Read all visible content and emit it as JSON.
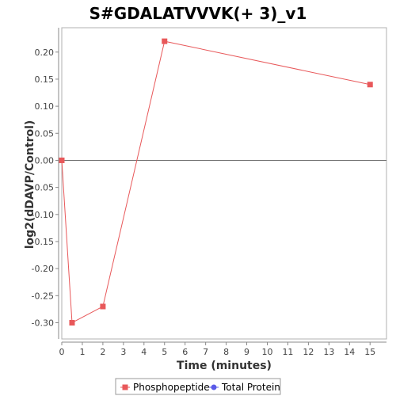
{
  "chart_data": {
    "type": "line",
    "title": "S#GDALATVVVK(+ 3)_v1",
    "xlabel": "Time (minutes)",
    "ylabel": "log2(dDAVP/Control)",
    "xlim": [
      0,
      15.8
    ],
    "ylim": [
      -0.33,
      0.245
    ],
    "x_ticks": [
      0,
      1,
      2,
      3,
      4,
      5,
      6,
      7,
      8,
      9,
      10,
      11,
      12,
      13,
      14,
      15
    ],
    "x_tick_labels": [
      "0",
      "1",
      "2",
      "3",
      "4",
      "5",
      "6",
      "7",
      "8",
      "9",
      "10",
      "11",
      "12",
      "13",
      "14",
      "15"
    ],
    "y_ticks": [
      0.2,
      0.15,
      0.1,
      0.05,
      0.0,
      -0.05,
      -0.1,
      -0.15,
      -0.2,
      -0.25,
      -0.3
    ],
    "y_tick_labels": [
      "0.20",
      "0.15",
      "0.10",
      "0.05",
      "0.00",
      "-0.05",
      "-0.10",
      "-0.15",
      "-0.20",
      "-0.25",
      "-0.30"
    ],
    "zero_line": true,
    "grid": false,
    "legend_position": "bottom",
    "series": [
      {
        "name": "Phosphopeptide",
        "color": "#e8585a",
        "marker": "square",
        "x": [
          0,
          0.5,
          2,
          5,
          15
        ],
        "y": [
          0.0,
          -0.3,
          -0.27,
          0.22,
          0.14
        ]
      },
      {
        "name": "Total Protein",
        "color": "#5a5ae8",
        "marker": "circle",
        "x": [],
        "y": []
      }
    ]
  }
}
